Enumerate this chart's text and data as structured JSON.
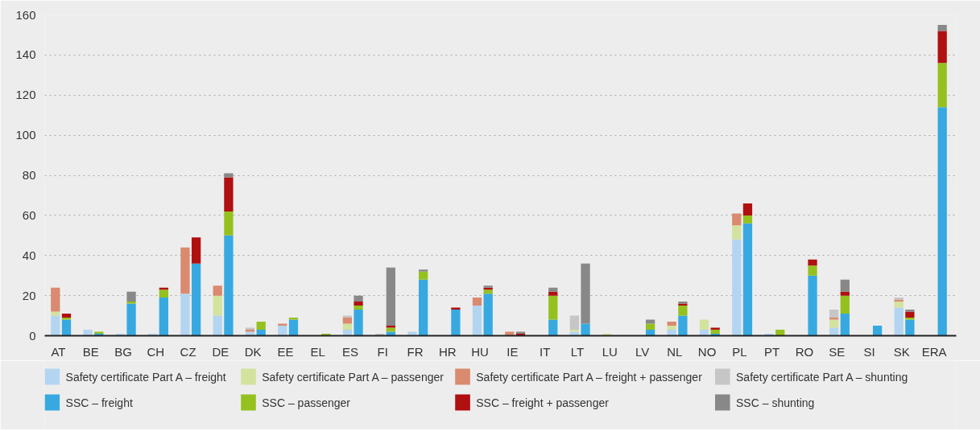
{
  "chart_data": {
    "type": "bar",
    "stacked": true,
    "categories": [
      "AT",
      null,
      "BE",
      null,
      "BG",
      null,
      "CH",
      null,
      "CZ",
      null,
      "DE",
      null,
      "DK",
      null,
      "EE",
      null,
      "EL",
      null,
      "ES",
      null,
      "FI",
      null,
      "FR",
      null,
      "HR",
      null,
      "HU",
      null,
      "IE",
      null,
      "IT",
      null,
      "LT",
      null,
      "LU",
      null,
      "LV",
      null,
      "NL",
      null,
      "NO",
      null,
      "PL",
      null,
      "PT",
      null,
      "RO",
      null,
      "SE",
      null,
      "SI",
      null,
      "SK",
      null,
      "ERA",
      null
    ],
    "series": [
      {
        "name": "Safety certificate Part A – freight",
        "color": "#b3d5f1",
        "values": [
          10,
          null,
          3,
          null,
          1,
          null,
          1,
          null,
          21,
          null,
          10,
          null,
          2,
          null,
          5,
          null,
          null,
          null,
          3,
          null,
          null,
          null,
          2,
          null,
          null,
          null,
          15,
          null,
          null,
          null,
          null,
          null,
          2,
          null,
          null,
          null,
          null,
          null,
          3,
          null,
          3,
          null,
          48,
          null,
          1,
          null,
          null,
          null,
          4,
          null,
          null,
          null,
          14,
          null,
          null,
          null
        ]
      },
      {
        "name": "SSC – freight",
        "color": "#37a9e0",
        "values": [
          null,
          8,
          null,
          1,
          null,
          16,
          null,
          19,
          null,
          36,
          null,
          50,
          null,
          3,
          null,
          8,
          null,
          null,
          null,
          13,
          null,
          2,
          null,
          28,
          null,
          13,
          null,
          21,
          null,
          null,
          null,
          8,
          null,
          6,
          null,
          null,
          null,
          3,
          null,
          10,
          null,
          1,
          null,
          56,
          null,
          null,
          null,
          30,
          null,
          11,
          null,
          5,
          null,
          8,
          null,
          114
        ]
      },
      {
        "name": "Safety certificate Part A – passenger",
        "color": "#d3e29d",
        "values": [
          2,
          null,
          null,
          null,
          null,
          null,
          null,
          null,
          null,
          null,
          10,
          null,
          null,
          null,
          null,
          null,
          null,
          null,
          3,
          null,
          null,
          null,
          null,
          null,
          null,
          null,
          null,
          null,
          null,
          null,
          null,
          null,
          1,
          null,
          1,
          null,
          null,
          null,
          2,
          null,
          5,
          null,
          7,
          null,
          null,
          null,
          null,
          null,
          4,
          null,
          null,
          null,
          3,
          null,
          null,
          null
        ]
      },
      {
        "name": "SSC  – passenger",
        "color": "#95c11f",
        "values": [
          null,
          1,
          null,
          1,
          null,
          1,
          null,
          4,
          null,
          null,
          null,
          12,
          null,
          4,
          null,
          1,
          null,
          1,
          null,
          2,
          null,
          2,
          null,
          4,
          null,
          null,
          null,
          2,
          null,
          null,
          null,
          12,
          null,
          null,
          null,
          null,
          null,
          3,
          null,
          5,
          null,
          2,
          null,
          4,
          null,
          3,
          null,
          5,
          null,
          9,
          null,
          null,
          null,
          1,
          null,
          22
        ]
      },
      {
        "name": "Safety certificate Part A – freight + passenger",
        "color": "#d98a6f",
        "values": [
          12,
          null,
          null,
          null,
          null,
          null,
          null,
          null,
          23,
          null,
          5,
          null,
          1,
          null,
          1,
          null,
          null,
          null,
          3,
          null,
          null,
          null,
          null,
          null,
          null,
          null,
          4,
          null,
          2,
          null,
          null,
          null,
          null,
          null,
          null,
          null,
          null,
          null,
          2,
          null,
          null,
          null,
          6,
          null,
          null,
          null,
          null,
          null,
          1,
          null,
          null,
          null,
          1,
          null,
          null,
          null
        ]
      },
      {
        "name": "SSC – freight + passenger",
        "color": "#b01010",
        "values": [
          null,
          2,
          null,
          null,
          null,
          null,
          null,
          1,
          null,
          13,
          null,
          17,
          null,
          null,
          null,
          null,
          null,
          null,
          null,
          2,
          null,
          1,
          null,
          null,
          null,
          1,
          null,
          1,
          null,
          1,
          null,
          2,
          null,
          null,
          null,
          null,
          null,
          null,
          null,
          1,
          null,
          1,
          null,
          6,
          null,
          null,
          null,
          3,
          null,
          2,
          null,
          null,
          null,
          3,
          null,
          16
        ]
      },
      {
        "name": "Safety certificate Part A – shunting",
        "color": "#c6c6c6",
        "values": [
          null,
          null,
          null,
          null,
          null,
          null,
          null,
          null,
          null,
          null,
          null,
          null,
          1,
          null,
          null,
          null,
          null,
          null,
          1,
          null,
          1,
          null,
          null,
          null,
          null,
          null,
          null,
          null,
          null,
          null,
          null,
          null,
          7,
          null,
          null,
          null,
          null,
          null,
          null,
          null,
          null,
          null,
          null,
          null,
          null,
          null,
          null,
          null,
          4,
          null,
          null,
          null,
          1,
          null,
          null,
          null
        ]
      },
      {
        "name": "SSC – shunting",
        "color": "#888888",
        "values": [
          null,
          null,
          null,
          null,
          null,
          5,
          null,
          null,
          null,
          null,
          null,
          2,
          null,
          null,
          null,
          null,
          null,
          null,
          null,
          3,
          null,
          29,
          null,
          1,
          null,
          null,
          null,
          1,
          null,
          1,
          null,
          2,
          null,
          30,
          null,
          null,
          null,
          2,
          null,
          1,
          null,
          null,
          null,
          null,
          null,
          null,
          null,
          null,
          null,
          6,
          null,
          null,
          null,
          1,
          null,
          3
        ]
      }
    ],
    "ylim": [
      0,
      160
    ],
    "yticks": [
      0,
      20,
      40,
      60,
      80,
      100,
      120,
      140,
      160
    ],
    "grid": "y",
    "legend": "bottom"
  }
}
